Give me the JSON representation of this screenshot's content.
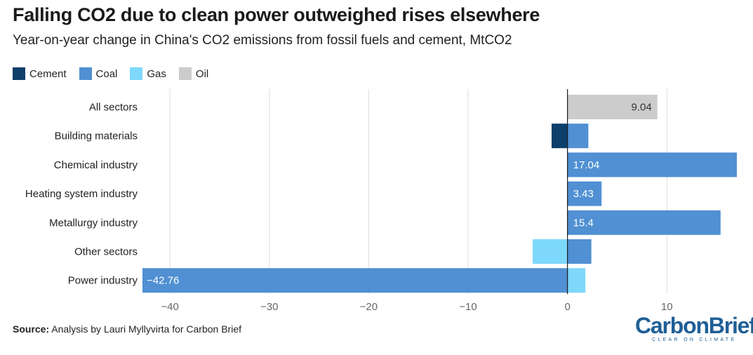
{
  "title": "Falling CO2 due to clean power outweighed rises elsewhere",
  "subtitle": "Year-on-year change in China's CO2 emissions from fossil fuels and cement, MtCO2",
  "source_label": "Source:",
  "source_text": "Analysis by Lauri Myllyvirta for Carbon Brief",
  "logo": {
    "name": "CarbonBrief",
    "tagline": "CLEAR ON CLIMATE"
  },
  "colors": {
    "Cement": "#0d3f6b",
    "Coal": "#5090d3",
    "Gas": "#7dd8fb",
    "Oil": "#cccccc"
  },
  "chart_data": {
    "type": "bar",
    "orientation": "horizontal",
    "stacked": true,
    "categories": [
      "All sectors",
      "Building materials",
      "Chemical industry",
      "Heating system industry",
      "Metallurgy industry",
      "Other sectors",
      "Power industry"
    ],
    "series": [
      {
        "name": "Cement",
        "values": [
          0,
          -1.6,
          0,
          0,
          0,
          0,
          0
        ]
      },
      {
        "name": "Coal",
        "values": [
          0,
          2.1,
          17.04,
          3.43,
          15.4,
          2.4,
          -42.76
        ]
      },
      {
        "name": "Gas",
        "values": [
          0,
          0,
          0,
          0,
          0,
          -3.5,
          1.8
        ]
      },
      {
        "name": "Oil",
        "values": [
          9.04,
          0,
          0,
          0,
          0,
          0,
          0
        ]
      }
    ],
    "data_labels": [
      {
        "category": "All sectors",
        "series": "Oil",
        "text": "9.04"
      },
      {
        "category": "Chemical industry",
        "series": "Coal",
        "text": "17.04"
      },
      {
        "category": "Heating system industry",
        "series": "Coal",
        "text": "3.43"
      },
      {
        "category": "Metallurgy industry",
        "series": "Coal",
        "text": "15.4"
      },
      {
        "category": "Power industry",
        "series": "Coal",
        "text": "−42.76"
      }
    ],
    "x_ticks": [
      -40,
      -30,
      -20,
      -10,
      0,
      10
    ],
    "x_tick_labels": [
      "−40",
      "−30",
      "−20",
      "−10",
      "0",
      "10"
    ],
    "xlim": [
      -42.76,
      17.04
    ],
    "grid": true,
    "legend_position": "top-left"
  }
}
